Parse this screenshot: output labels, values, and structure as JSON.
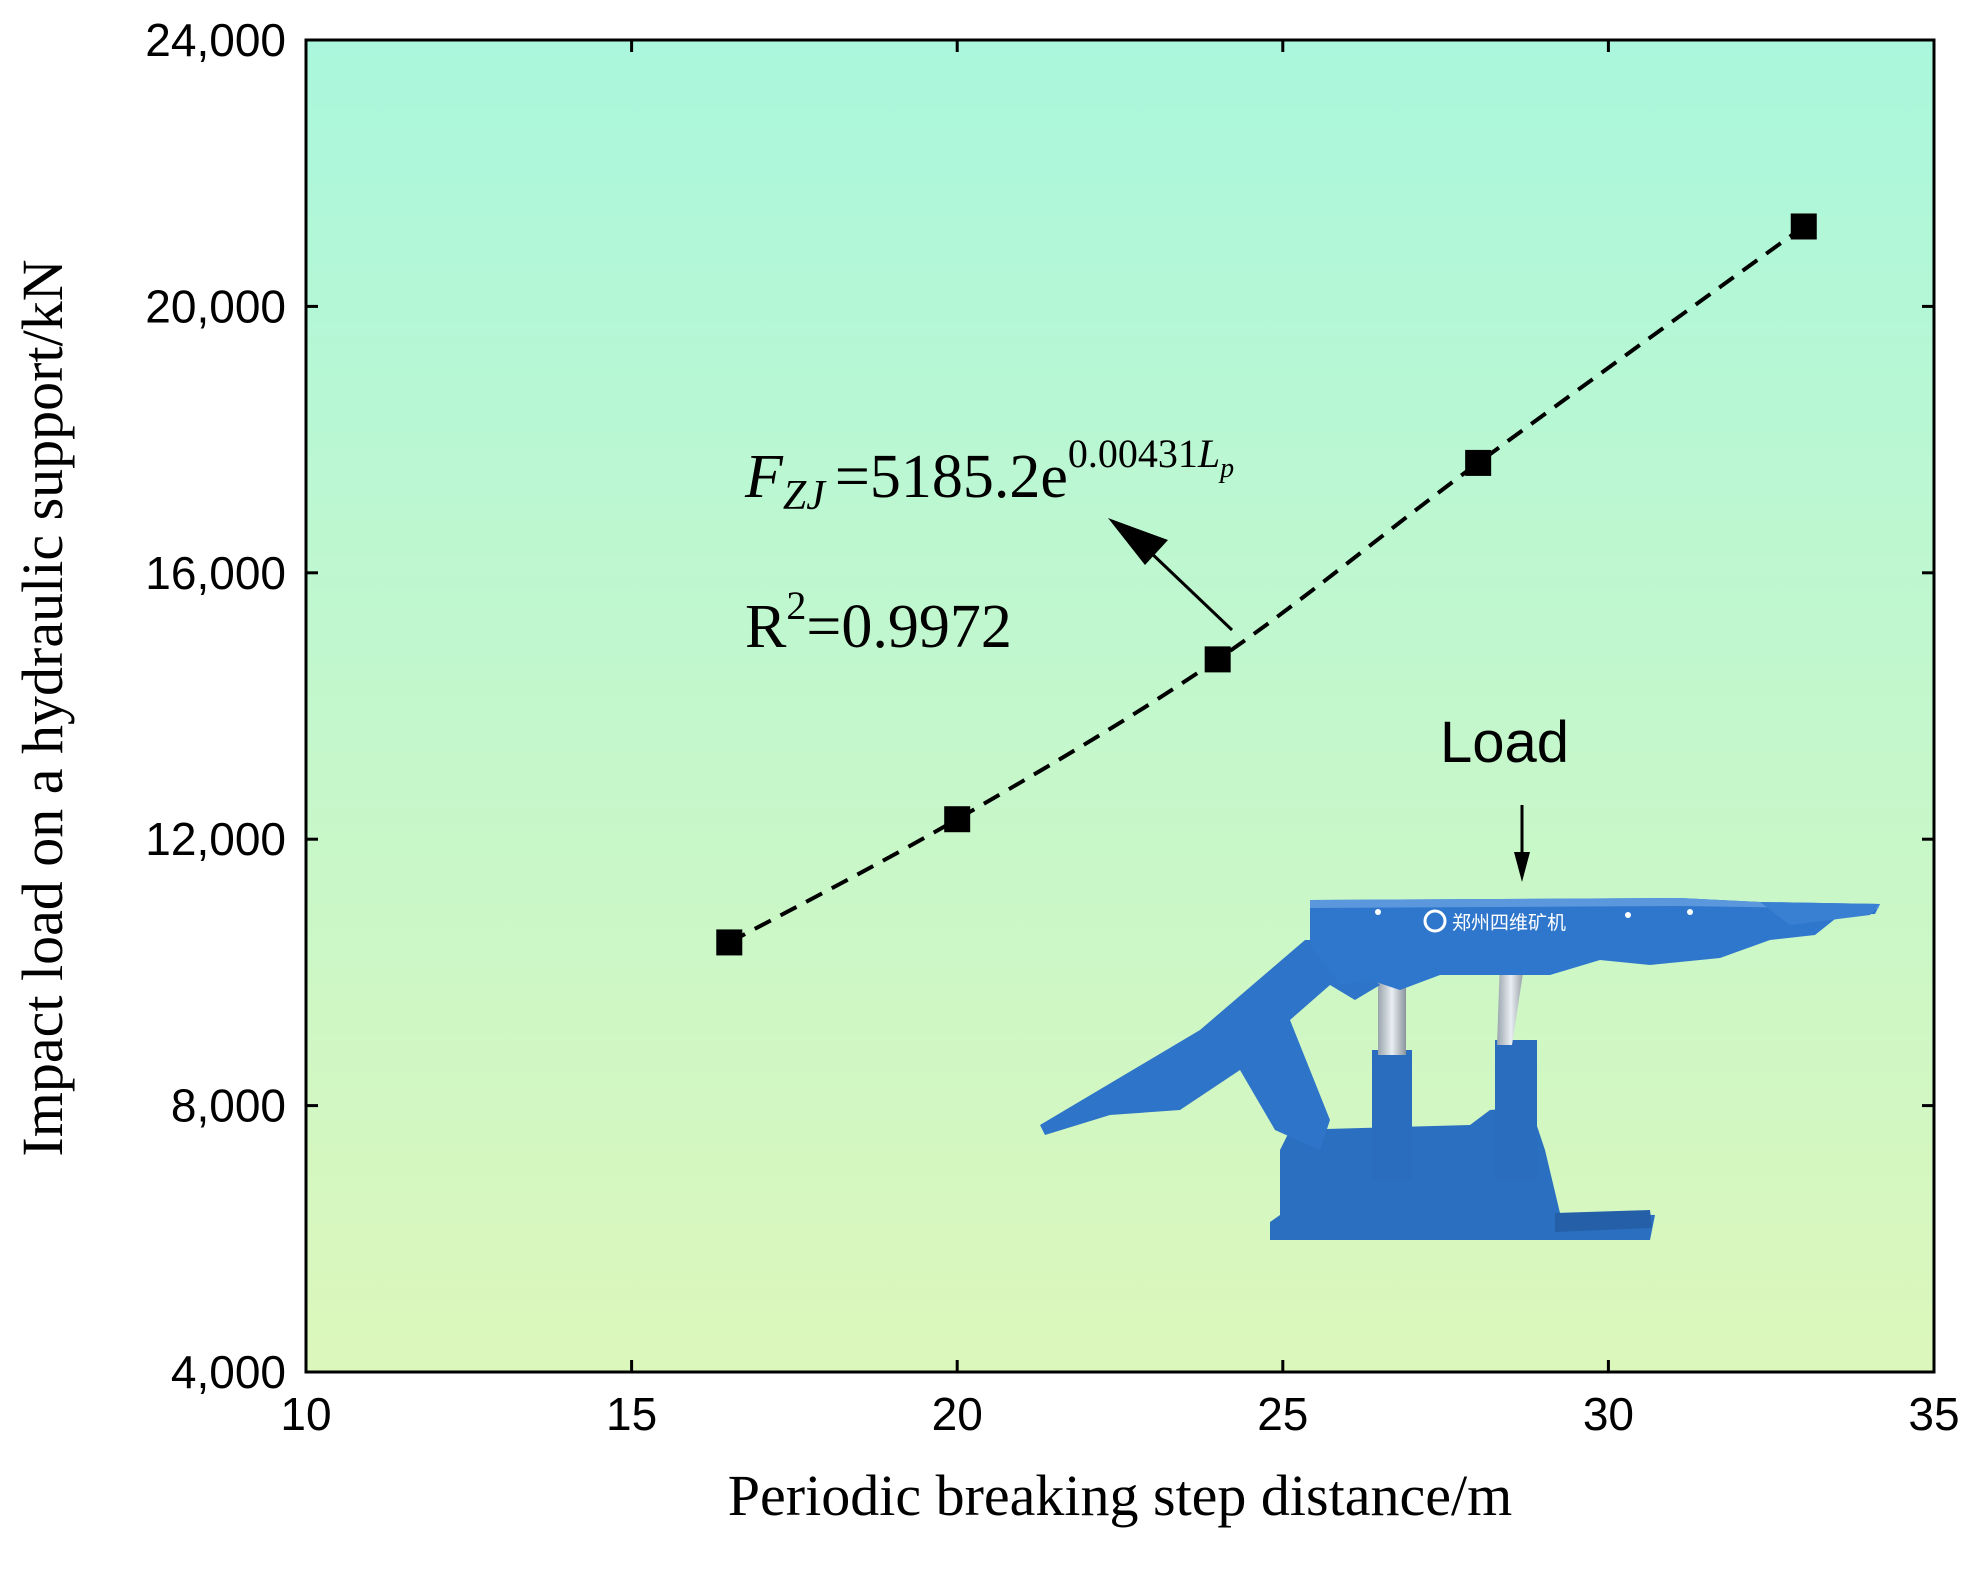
{
  "chart_data": {
    "type": "scatter",
    "xlabel": "Periodic breaking step distance/m",
    "ylabel": "Impact load on a hydraulic support/kN",
    "xlim": [
      10,
      35
    ],
    "ylim": [
      4000,
      24000
    ],
    "x_ticks": [
      10,
      15,
      20,
      25,
      30,
      35
    ],
    "y_ticks": [
      4000,
      8000,
      12000,
      16000,
      20000,
      24000
    ],
    "x_tick_labels": [
      "10",
      "15",
      "20",
      "25",
      "30",
      "35"
    ],
    "y_tick_labels": [
      "4,000",
      "8,000",
      "12,000",
      "16,000",
      "20,000",
      "24,000"
    ],
    "grid": false,
    "series": [
      {
        "marker": "square",
        "color": "#000000",
        "x": [
          16.5,
          20,
          24,
          28,
          33
        ],
        "y": [
          10450,
          12300,
          14700,
          17650,
          21200
        ]
      }
    ],
    "fit": {
      "style": "dashed",
      "color": "#000000",
      "x_range": [
        16.5,
        33
      ],
      "model": "exponential",
      "coefficient": 5185.2,
      "rate": 0.00431
    },
    "annotations": {
      "equation": {
        "lhs": "F",
        "lhs_subscript": "ZJ",
        "rhs": "=5185.2e",
        "exponent": "0.00431",
        "exponent_var": "L",
        "exponent_var_subscript": "p"
      },
      "r_squared": {
        "prefix": "R",
        "superscript": "2",
        "value": "=0.9972"
      },
      "load_label": "Load",
      "support_logo_text": "郑州四维矿机"
    },
    "background_gradient": [
      "#aaf7dd",
      "#dcf7bb"
    ]
  }
}
